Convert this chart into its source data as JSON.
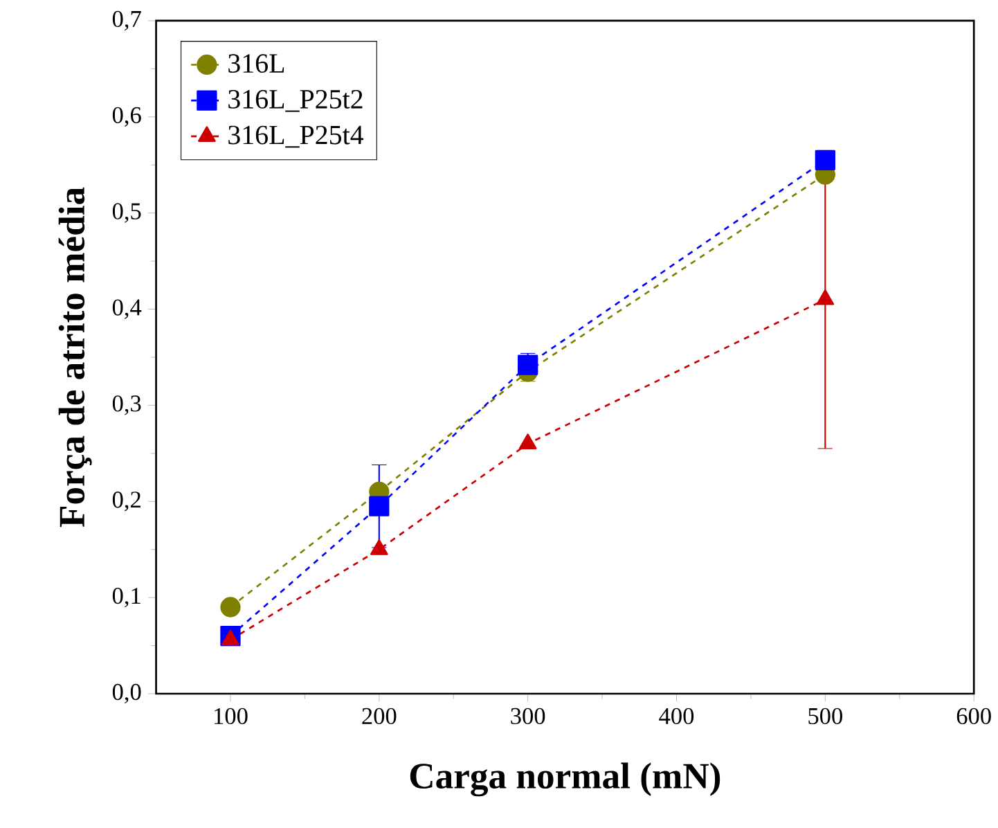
{
  "chart_data": {
    "type": "line",
    "xlabel": "Carga normal (mN)",
    "ylabel": "Força de atrito média",
    "xlim": [
      50,
      600
    ],
    "xticks": [
      100,
      200,
      300,
      400,
      500,
      600
    ],
    "ylim": [
      0,
      0.7
    ],
    "yticks": [
      {
        "value": 0,
        "label": "0,0"
      },
      {
        "value": 0.1,
        "label": "0,1"
      },
      {
        "value": 0.2,
        "label": "0,2"
      },
      {
        "value": 0.3,
        "label": "0,3"
      },
      {
        "value": 0.4,
        "label": "0,4"
      },
      {
        "value": 0.5,
        "label": "0,5"
      },
      {
        "value": 0.6,
        "label": "0,6"
      },
      {
        "value": 0.7,
        "label": "0,7"
      }
    ],
    "legend": "top left",
    "line_style": "dashed",
    "grid": false,
    "series": [
      {
        "name": "316L",
        "color": "#808000",
        "marker": "circle",
        "x": [
          100,
          200,
          300,
          500
        ],
        "values": [
          0.09,
          0.21,
          0.335,
          0.54
        ],
        "errors": [
          null,
          null,
          0.01,
          null
        ]
      },
      {
        "name": "316L_P25t2",
        "color": "#0000ff",
        "marker": "square",
        "x": [
          100,
          200,
          300,
          500
        ],
        "values": [
          0.06,
          0.195,
          0.342,
          0.555
        ],
        "errors": [
          0.006,
          0.043,
          0.012,
          null
        ]
      },
      {
        "name": "316L_P25t4",
        "color": "#cc0000",
        "marker": "triangle",
        "x": [
          100,
          200,
          300,
          500
        ],
        "values": [
          0.056,
          0.15,
          0.26,
          0.41
        ],
        "errors": [
          null,
          null,
          null,
          0.155
        ]
      }
    ]
  }
}
